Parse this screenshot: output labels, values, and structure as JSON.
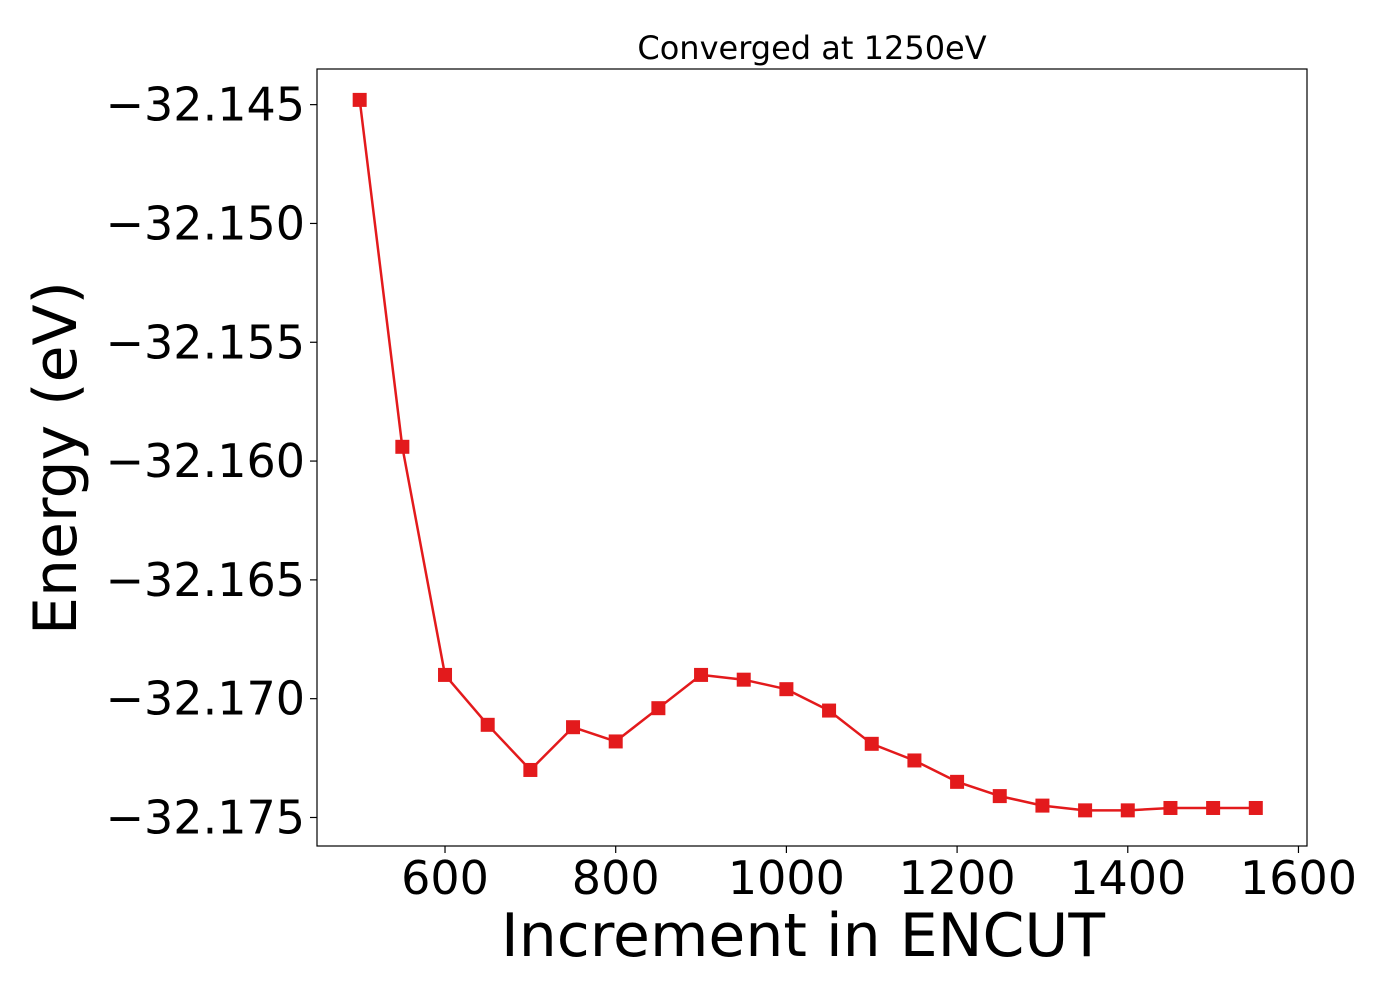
{
  "chart_data": {
    "type": "line",
    "title": "Converged at 1250eV",
    "xlabel": "Increment in ENCUT",
    "ylabel": "Energy (eV)",
    "xlim": [
      450,
      1610
    ],
    "ylim": [
      -32.1762,
      -32.1435
    ],
    "x_ticks": [
      600,
      800,
      1000,
      1200,
      1400,
      1600
    ],
    "x_tick_labels": [
      "600",
      "800",
      "1000",
      "1200",
      "1400",
      "1600"
    ],
    "y_ticks": [
      -32.145,
      -32.15,
      -32.155,
      -32.16,
      -32.165,
      -32.17,
      -32.175
    ],
    "y_tick_labels": [
      "−32.145",
      "−32.150",
      "−32.155",
      "−32.160",
      "−32.165",
      "−32.170",
      "−32.175"
    ],
    "grid": false,
    "color": "#e31a1c",
    "marker": "square",
    "series": [
      {
        "x": [
          500,
          550,
          600,
          650,
          700,
          750,
          800,
          850,
          900,
          950,
          1000,
          1050,
          1100,
          1150,
          1200,
          1250,
          1300,
          1350,
          1400,
          1450,
          1500,
          1550
        ],
        "y": [
          -32.1448,
          -32.1594,
          -32.169,
          -32.1711,
          -32.173,
          -32.1712,
          -32.1718,
          -32.1704,
          -32.169,
          -32.1692,
          -32.1696,
          -32.1705,
          -32.1719,
          -32.1726,
          -32.1735,
          -32.1741,
          -32.1745,
          -32.1747,
          -32.1747,
          -32.1746,
          -32.1746,
          -32.1746
        ]
      }
    ]
  }
}
